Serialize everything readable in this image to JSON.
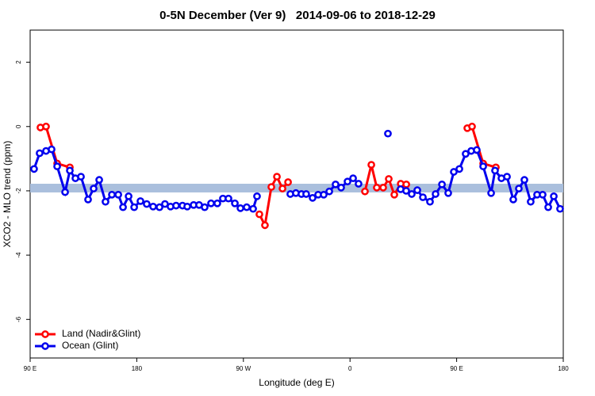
{
  "chart_data": {
    "type": "line",
    "title": "0-5N December (Ver 9)   2014-09-06 to 2018-12-29",
    "x_label": "Longitude (deg E)",
    "y_label": "XCO2 - MLO trend (ppm)",
    "xlim": [
      90,
      540
    ],
    "ylim": [
      -7.2,
      3
    ],
    "xticks": [
      {
        "value": 90,
        "label": "90 E"
      },
      180,
      {
        "value": 270,
        "label": "90 W"
      },
      {
        "value": 360,
        "label": "0"
      },
      {
        "value": 450,
        "label": "90 E"
      },
      {
        "value": 540,
        "label": "180"
      }
    ],
    "yticks": [
      2,
      0,
      -2,
      -4,
      -6
    ],
    "grid": false,
    "legend": "bottom-left",
    "reference_band": {
      "color": "#aabfdd",
      "range": [
        -2.05,
        -1.78
      ]
    },
    "series": [
      {
        "name": "Land (Nadir&Glint)",
        "color": "#ff0000",
        "x": [
          98.7,
          103.4,
          112.8,
          123.5,
          null,
          283.5,
          288.2,
          293.6,
          298.3,
          303.0,
          307.7,
          null,
          372.6,
          378.0,
          382.6,
          388.0,
          392.7,
          397.4,
          402.8,
          407.5,
          null,
          459.0,
          463.0,
          472.4,
          483.1
        ],
        "values": [
          -0.03,
          0,
          -1.15,
          -1.27,
          null,
          -2.73,
          -3.07,
          -1.88,
          -1.56,
          -1.93,
          -1.73,
          null,
          -2.02,
          -1.19,
          -1.9,
          -1.9,
          -1.63,
          -2.12,
          -1.78,
          -1.8,
          null,
          -0.05,
          0,
          -1.15,
          -1.27
        ]
      },
      {
        "name": "Ocean (Glint)",
        "color": "#0000ee",
        "x": [
          93.3,
          98.0,
          103.4,
          108.1,
          112.8,
          119.5,
          123.5,
          128.2,
          132.9,
          138.9,
          143.6,
          148.3,
          153.6,
          159.0,
          164.4,
          168.4,
          173.1,
          177.8,
          183.1,
          188.4,
          193.8,
          199.2,
          203.8,
          208.5,
          213.2,
          218.6,
          222.6,
          228.0,
          232.6,
          237.3,
          242.7,
          248.0,
          252.7,
          257.4,
          262.8,
          267.5,
          272.8,
          278.2,
          281.5,
          null,
          309.6,
          314.3,
          319.0,
          323.0,
          328.4,
          333.1,
          337.8,
          342.5,
          347.8,
          352.5,
          357.9,
          362.6,
          367.2,
          null,
          392.0,
          null,
          402.7,
          407.4,
          412.1,
          416.8,
          421.5,
          427.5,
          432.2,
          437.6,
          442.9,
          447.6,
          452.3,
          457.6,
          462.3,
          467.0,
          472.4,
          479.1,
          482.4,
          487.8,
          492.5,
          497.8,
          502.5,
          507.2,
          512.5,
          517.9,
          522.6,
          527.3,
          532.0,
          537.3
        ],
        "values": [
          -1.32,
          -0.83,
          -0.76,
          -0.71,
          -1.24,
          -2.04,
          -1.37,
          -1.61,
          -1.56,
          -2.27,
          -1.93,
          -1.66,
          -2.34,
          -2.12,
          -2.12,
          -2.51,
          -2.17,
          -2.51,
          -2.32,
          -2.41,
          -2.49,
          -2.51,
          -2.41,
          -2.49,
          -2.46,
          -2.46,
          -2.49,
          -2.44,
          -2.44,
          -2.51,
          -2.39,
          -2.39,
          -2.24,
          -2.24,
          -2.39,
          -2.54,
          -2.51,
          -2.56,
          -2.17,
          null,
          -2.1,
          -2.07,
          -2.1,
          -2.1,
          -2.22,
          -2.12,
          -2.12,
          -2.02,
          -1.8,
          -1.9,
          -1.71,
          -1.61,
          -1.78,
          null,
          -0.22,
          null,
          -1.95,
          -2.0,
          -2.1,
          -1.98,
          -2.2,
          -2.34,
          -2.1,
          -1.8,
          -2.07,
          -1.41,
          -1.32,
          -0.85,
          -0.76,
          -0.73,
          -1.24,
          -2.07,
          -1.37,
          -1.61,
          -1.56,
          -2.27,
          -1.93,
          -1.66,
          -2.34,
          -2.12,
          -2.12,
          -2.51,
          -2.17,
          -2.56
        ]
      }
    ]
  }
}
